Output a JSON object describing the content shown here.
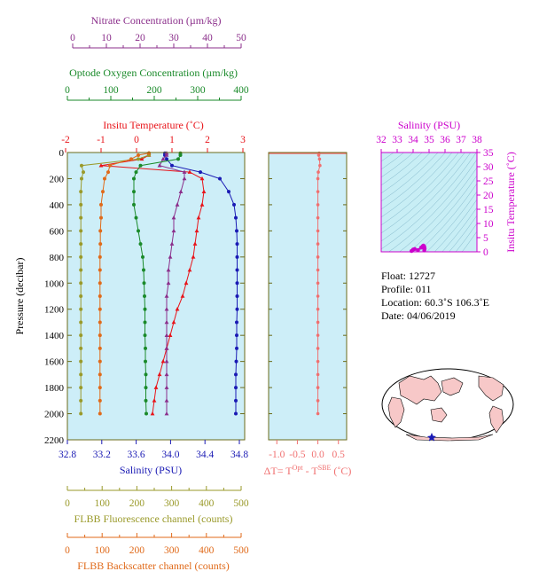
{
  "axes": {
    "nitrate": {
      "label": "Nitrate Concentration (µm/kg)",
      "ticks": [
        "0",
        "10",
        "20",
        "30",
        "40",
        "50"
      ],
      "color": "#8b2f8b"
    },
    "oxygen": {
      "label": "Optode Oxygen Concentration (µm/kg)",
      "ticks": [
        "0",
        "100",
        "200",
        "300",
        "400"
      ],
      "color": "#1a8a2a"
    },
    "temperature": {
      "label": "Insitu Temperature (˚C)",
      "ticks": [
        "-2",
        "-1",
        "0",
        "1",
        "2",
        "3"
      ],
      "color": "#e8141a"
    },
    "pressure": {
      "label": "Pressure (decibar)",
      "ticks": [
        "0",
        "200",
        "400",
        "600",
        "800",
        "1000",
        "1200",
        "1400",
        "1600",
        "1800",
        "2000",
        "2200"
      ]
    },
    "salinity": {
      "label": "Salinity (PSU)",
      "ticks": [
        "32.8",
        "33.2",
        "33.6",
        "34.0",
        "34.4",
        "34.8"
      ],
      "color": "#1a1ab4"
    },
    "fluorescence": {
      "label": "FLBB Fluorescence channel (counts)",
      "ticks": [
        "0",
        "100",
        "200",
        "300",
        "400",
        "500"
      ],
      "color": "#9a9a2a"
    },
    "backscatter": {
      "label": "FLBB Backscatter channel (counts)",
      "ticks": [
        "0",
        "100",
        "200",
        "300",
        "400",
        "500"
      ],
      "color": "#e06a1a"
    },
    "deltat": {
      "label_pre": "ΔT= T",
      "sup1": "Opt",
      "label_mid": " - T",
      "sup2": "SBE",
      "label_post": " (˚C)",
      "ticks": [
        "-1.0",
        "-0.5",
        "0.0",
        "0.5"
      ],
      "color": "#f07070"
    },
    "ts_salinity": {
      "label": "Salinity (PSU)",
      "ticks": [
        "32",
        "33",
        "34",
        "35",
        "36",
        "37",
        "38"
      ],
      "color": "#cc00cc"
    },
    "ts_temperature": {
      "label": "Insitu Temperature (˚C)",
      "ticks": [
        "0",
        "5",
        "10",
        "15",
        "20",
        "25",
        "30",
        "35"
      ],
      "color": "#cc00cc"
    }
  },
  "info": {
    "float": "Float:  12727",
    "profile": "Profile:  011",
    "location": "Location:  60.3˚S  106.3˚E",
    "date": "Date:  04/06/2019"
  },
  "colors": {
    "panel_bg": "#cdeef8",
    "frame": "#6b6b1a",
    "ts_bg": "#c8eef5",
    "map_land": "#f7c8c8"
  },
  "chart_data": [
    {
      "type": "line",
      "panel": "profile",
      "ylabel": "Pressure (decibar)",
      "ylim": [
        2200,
        0
      ],
      "pressure": [
        5,
        20,
        50,
        100,
        150,
        200,
        300,
        400,
        500,
        600,
        700,
        800,
        900,
        1000,
        1100,
        1200,
        1300,
        1400,
        1500,
        1600,
        1700,
        1800,
        1900,
        2000
      ],
      "series": [
        {
          "name": "Salinity",
          "unit": "PSU",
          "axis": "salinity",
          "xlim": [
            32.8,
            34.8
          ],
          "color": "#1a1ab4",
          "marker": "circle",
          "values": [
            33.9,
            33.9,
            33.92,
            33.98,
            34.3,
            34.52,
            34.62,
            34.68,
            34.7,
            34.71,
            34.715,
            34.715,
            34.715,
            34.715,
            34.715,
            34.715,
            34.71,
            34.71,
            34.71,
            34.705,
            34.7,
            34.7,
            34.7,
            34.7
          ]
        },
        {
          "name": "Temperature",
          "unit": "˚C",
          "axis": "temperature",
          "xlim": [
            -2,
            3
          ],
          "color": "#e8141a",
          "marker": "triangle",
          "values": [
            0.3,
            0.3,
            0.1,
            -1.05,
            1.45,
            1.8,
            1.85,
            1.8,
            1.7,
            1.65,
            1.6,
            1.55,
            1.45,
            1.35,
            1.25,
            1.1,
            1.0,
            0.9,
            0.8,
            0.7,
            0.6,
            0.5,
            0.45,
            0.4
          ]
        },
        {
          "name": "Nitrate",
          "unit": "µm/kg",
          "axis": "nitrate",
          "xlim": [
            0,
            50
          ],
          "color": "#8b2f8b",
          "marker": "triangle",
          "values": [
            28,
            28,
            27,
            26,
            33,
            33,
            32,
            31,
            30,
            30,
            29.5,
            29,
            28.5,
            28.5,
            28,
            28,
            28,
            28,
            28,
            28,
            28,
            28,
            28,
            28
          ]
        },
        {
          "name": "Oxygen",
          "unit": "µm/kg",
          "axis": "oxygen",
          "xlim": [
            0,
            400
          ],
          "color": "#1a8a2a",
          "marker": "circle",
          "values": [
            255,
            255,
            250,
            165,
            155,
            150,
            150,
            150,
            155,
            160,
            165,
            170,
            172,
            173,
            174,
            175,
            175,
            175,
            176,
            176,
            177,
            177,
            177,
            178
          ]
        },
        {
          "name": "Fluorescence",
          "unit": "counts",
          "axis": "fluorescence",
          "xlim": [
            0,
            500
          ],
          "color": "#9a9a2a",
          "marker": "circle",
          "values": [
            230,
            230,
            200,
            40,
            45,
            40,
            38,
            38,
            38,
            38,
            38,
            38,
            38,
            38,
            38,
            38,
            38,
            38,
            38,
            38,
            38,
            38,
            38,
            38
          ]
        },
        {
          "name": "Backscatter",
          "unit": "counts",
          "axis": "backscatter",
          "xlim": [
            0,
            500
          ],
          "color": "#e06a1a",
          "marker": "circle",
          "values": [
            230,
            200,
            180,
            120,
            115,
            105,
            100,
            95,
            95,
            93,
            93,
            92,
            92,
            92,
            92,
            92,
            92,
            92,
            92,
            92,
            92,
            92,
            92,
            92
          ]
        }
      ]
    },
    {
      "type": "line",
      "panel": "deltat",
      "ylim": [
        2200,
        0
      ],
      "xlim": [
        -1.2,
        0.7
      ],
      "pressure": [
        5,
        20,
        50,
        100,
        150,
        200,
        300,
        400,
        500,
        600,
        700,
        800,
        900,
        1000,
        1100,
        1200,
        1300,
        1400,
        1500,
        1600,
        1700,
        1800,
        1900,
        2000
      ],
      "values": [
        0.03,
        0.02,
        0.04,
        0.05,
        0.01,
        0.0,
        0.0,
        0.0,
        0.0,
        0.0,
        0.0,
        0.0,
        0.0,
        0.0,
        0.0,
        0.0,
        0.0,
        0.0,
        0.0,
        0.0,
        0.0,
        0.0,
        0.0,
        0.0
      ]
    },
    {
      "type": "scatter",
      "panel": "ts",
      "xlim": [
        32,
        38
      ],
      "ylim": [
        0,
        35
      ],
      "points": [
        [
          33.9,
          0.3
        ],
        [
          34.0,
          0.8
        ],
        [
          34.1,
          1.0
        ],
        [
          34.3,
          0.6
        ],
        [
          34.5,
          1.5
        ],
        [
          34.6,
          2.0
        ],
        [
          34.65,
          2.2
        ],
        [
          34.7,
          1.8
        ],
        [
          34.72,
          1.2
        ],
        [
          34.7,
          0.8
        ],
        [
          34.7,
          0.5
        ]
      ]
    }
  ]
}
